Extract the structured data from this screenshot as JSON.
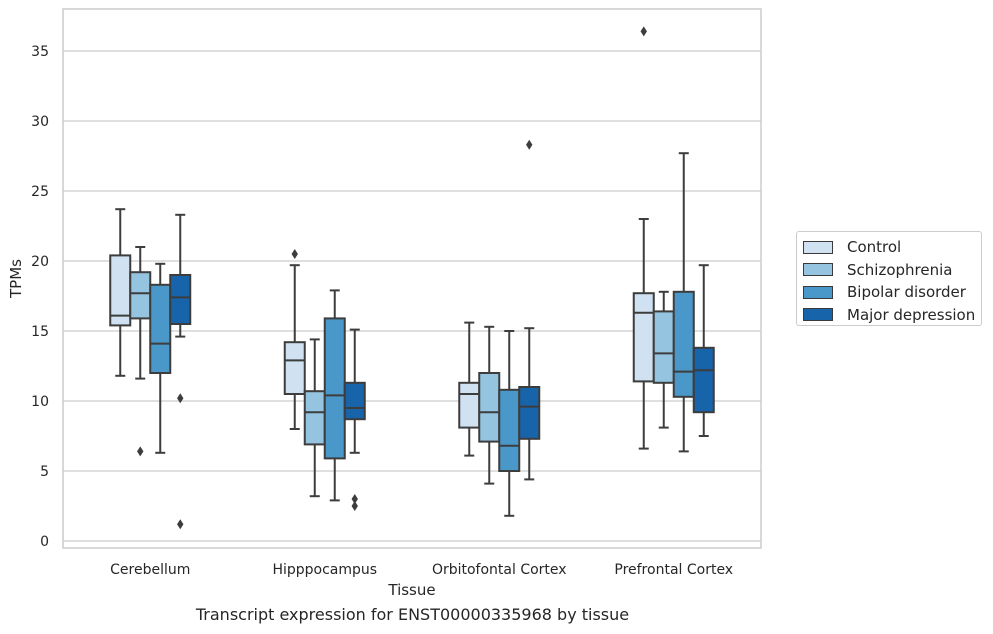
{
  "chart_data": {
    "type": "box",
    "caption": "Transcript expression for ENST00000335968 by tissue",
    "xlabel": "Tissue",
    "ylabel": "TPMs",
    "ylim": [
      -0.5,
      38
    ],
    "yticks": [
      0,
      5,
      10,
      15,
      20,
      25,
      30,
      35
    ],
    "grid": true,
    "legend_position": "right",
    "categories": [
      "Cerebellum",
      "Hipppocampus",
      "Orbitofontal Cortex",
      "Prefrontal Cortex"
    ],
    "series": [
      {
        "name": "Control",
        "color": "#d0e1f2",
        "boxes": [
          {
            "whislo": 11.8,
            "q1": 15.4,
            "med": 16.1,
            "q3": 20.4,
            "whishi": 23.7,
            "fliers": []
          },
          {
            "whislo": 8.0,
            "q1": 10.5,
            "med": 12.9,
            "q3": 14.2,
            "whishi": 19.7,
            "fliers": [
              20.5
            ]
          },
          {
            "whislo": 6.1,
            "q1": 8.1,
            "med": 10.5,
            "q3": 11.3,
            "whishi": 15.6,
            "fliers": []
          },
          {
            "whislo": 6.6,
            "q1": 11.4,
            "med": 16.3,
            "q3": 17.7,
            "whishi": 23.0,
            "fliers": [
              36.4
            ]
          }
        ]
      },
      {
        "name": "Schizophrenia",
        "color": "#94c4df",
        "boxes": [
          {
            "whislo": 11.6,
            "q1": 15.9,
            "med": 17.7,
            "q3": 19.2,
            "whishi": 21.0,
            "fliers": [
              6.4
            ]
          },
          {
            "whislo": 3.2,
            "q1": 6.9,
            "med": 9.2,
            "q3": 10.7,
            "whishi": 14.4,
            "fliers": []
          },
          {
            "whislo": 4.1,
            "q1": 7.1,
            "med": 9.2,
            "q3": 12.0,
            "whishi": 15.3,
            "fliers": []
          },
          {
            "whislo": 8.1,
            "q1": 11.3,
            "med": 13.4,
            "q3": 16.4,
            "whishi": 17.8,
            "fliers": []
          }
        ]
      },
      {
        "name": "Bipolar disorder",
        "color": "#4a98c9",
        "boxes": [
          {
            "whislo": 6.3,
            "q1": 12.0,
            "med": 14.1,
            "q3": 18.3,
            "whishi": 19.8,
            "fliers": []
          },
          {
            "whislo": 2.9,
            "q1": 5.9,
            "med": 10.4,
            "q3": 15.9,
            "whishi": 17.9,
            "fliers": []
          },
          {
            "whislo": 1.8,
            "q1": 5.0,
            "med": 6.8,
            "q3": 10.8,
            "whishi": 15.0,
            "fliers": []
          },
          {
            "whislo": 6.4,
            "q1": 10.3,
            "med": 12.1,
            "q3": 17.8,
            "whishi": 27.7,
            "fliers": []
          }
        ]
      },
      {
        "name": "Major depression",
        "color": "#1764ab",
        "boxes": [
          {
            "whislo": 14.6,
            "q1": 15.5,
            "med": 17.4,
            "q3": 19.0,
            "whishi": 23.3,
            "fliers": [
              10.2,
              1.2
            ]
          },
          {
            "whislo": 6.3,
            "q1": 8.7,
            "med": 9.5,
            "q3": 11.3,
            "whishi": 15.1,
            "fliers": [
              3.0,
              2.5
            ]
          },
          {
            "whislo": 4.4,
            "q1": 7.3,
            "med": 9.6,
            "q3": 11.0,
            "whishi": 15.2,
            "fliers": [
              28.3
            ]
          },
          {
            "whislo": 7.5,
            "q1": 9.2,
            "med": 12.2,
            "q3": 13.8,
            "whishi": 19.7,
            "fliers": []
          }
        ]
      }
    ]
  }
}
